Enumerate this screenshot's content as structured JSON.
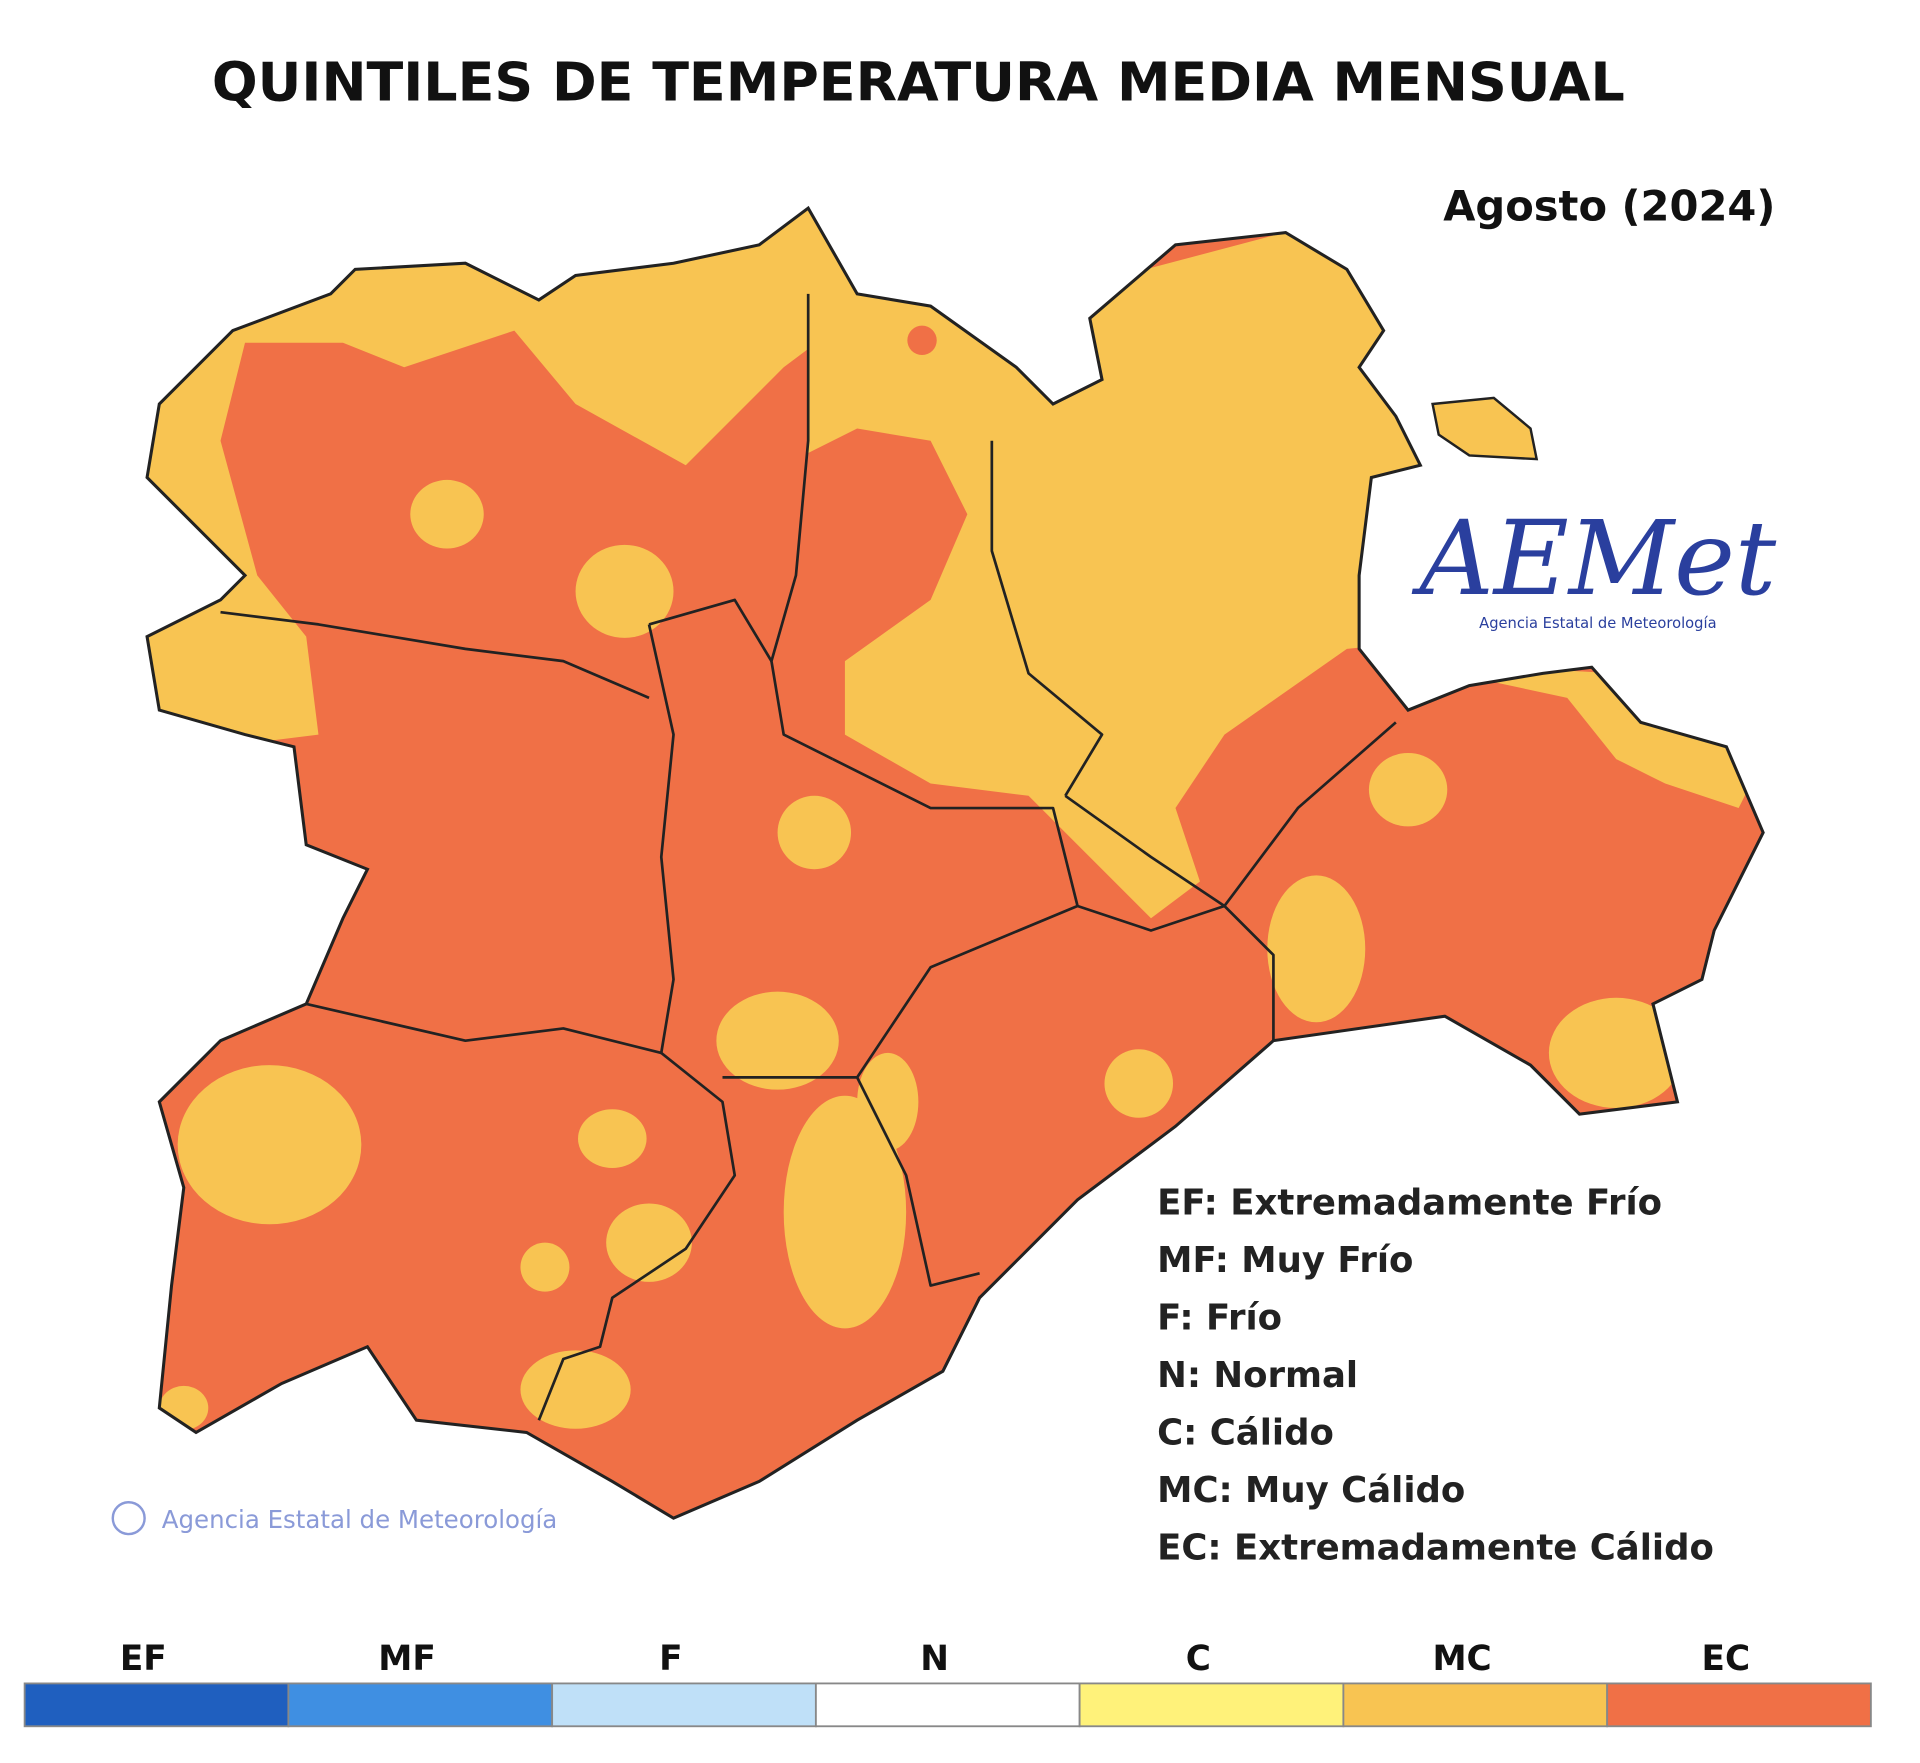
{
  "header": {
    "title": "QUINTILES DE TEMPERATURA MEDIA MENSUAL",
    "period": "Agosto (2024)"
  },
  "logo": {
    "name": "AEMet",
    "caption": "Agencia Estatal de Meteorología"
  },
  "watermark": "Agencia Estatal de Meteorología",
  "definitions": [
    "EF: Extremadamente Frío",
    "MF: Muy Frío",
    "F: Frío",
    "N: Normal",
    "C: Cálido",
    "MC: Muy Cálido",
    "EC: Extremadamente Cálido"
  ],
  "colorbar": [
    {
      "label": "EF",
      "color": "#1f5fbf"
    },
    {
      "label": "MF",
      "color": "#3f8fe2"
    },
    {
      "label": "F",
      "color": "#bfe0f8"
    },
    {
      "label": "N",
      "color": "#ffffff"
    },
    {
      "label": "C",
      "color": "#fff27a"
    },
    {
      "label": "MC",
      "color": "#f8c452"
    },
    {
      "label": "EC",
      "color": "#f07046"
    }
  ]
}
